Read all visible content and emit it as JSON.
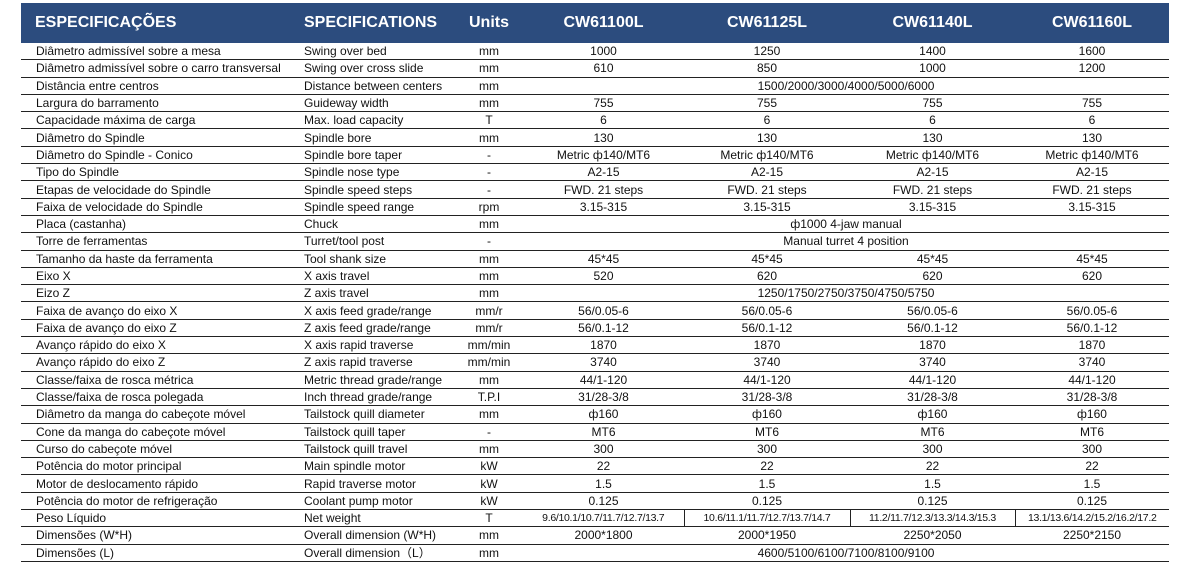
{
  "header": {
    "pt": "ESPECIFICAÇÕES",
    "en": "SPECIFICATIONS",
    "units": "Units",
    "models": [
      "CW61100L",
      "CW61125L",
      "CW61140L",
      "CW61160L"
    ]
  },
  "colors": {
    "header_bg": "#2c4c7e",
    "header_text": "#ffffff",
    "row_border": "#222222"
  },
  "rows": [
    {
      "pt": "Diâmetro admissível sobre a mesa",
      "en": "Swing over bed",
      "unit": "mm",
      "vals": [
        "1000",
        "1250",
        "1400",
        "1600"
      ]
    },
    {
      "pt": "Diâmetro admissível sobre o carro transversal",
      "en": "Swing over cross slide",
      "unit": "mm",
      "vals": [
        "610",
        "850",
        "1000",
        "1200"
      ]
    },
    {
      "pt": "Distância entre centros",
      "en": "Distance between centers",
      "unit": "mm",
      "span": "1500/2000/3000/4000/5000/6000"
    },
    {
      "pt": "Largura do barramento",
      "en": "Guideway width",
      "unit": "mm",
      "vals": [
        "755",
        "755",
        "755",
        "755"
      ]
    },
    {
      "pt": "Capacidade máxima de carga",
      "en": "Max. load capacity",
      "unit": "T",
      "vals": [
        "6",
        "6",
        "6",
        "6"
      ]
    },
    {
      "pt": "Diâmetro do Spindle",
      "en": "Spindle bore",
      "unit": "mm",
      "vals": [
        "130",
        "130",
        "130",
        "130"
      ]
    },
    {
      "pt": "Diâmetro do Spindle - Conico",
      "en": "Spindle bore taper",
      "unit": "-",
      "vals": [
        "Metric ф140/MT6",
        "Metric ф140/MT6",
        "Metric ф140/MT6",
        "Metric ф140/MT6"
      ]
    },
    {
      "pt": "Tipo do Spindle",
      "en": "Spindle nose type",
      "unit": "-",
      "vals": [
        "A2-15",
        "A2-15",
        "A2-15",
        "A2-15"
      ]
    },
    {
      "pt": "Etapas de velocidade do Spindle",
      "en": "Spindle speed steps",
      "unit": "-",
      "vals": [
        "FWD. 21 steps",
        "FWD. 21 steps",
        "FWD. 21 steps",
        "FWD. 21 steps"
      ]
    },
    {
      "pt": "Faixa de velocidade do Spindle",
      "en": "Spindle speed range",
      "unit": "rpm",
      "vals": [
        "3.15-315",
        "3.15-315",
        "3.15-315",
        "3.15-315"
      ]
    },
    {
      "pt": "Placa (castanha)",
      "en": "Chuck",
      "unit": "mm",
      "span": "ф1000 4-jaw manual"
    },
    {
      "pt": "Torre de ferramentas",
      "en": "Turret/tool post",
      "unit": "-",
      "span": "Manual turret 4 position"
    },
    {
      "pt": "Tamanho da haste da ferramenta",
      "en": "Tool shank size",
      "unit": "mm",
      "vals": [
        "45*45",
        "45*45",
        "45*45",
        "45*45"
      ]
    },
    {
      "pt": "Eixo X",
      "en": "X axis travel",
      "unit": "mm",
      "vals": [
        "520",
        "620",
        "620",
        "620"
      ]
    },
    {
      "pt": "Eizo Z",
      "en": "Z axis travel",
      "unit": "mm",
      "span": "1250/1750/2750/3750/4750/5750"
    },
    {
      "pt": "Faixa de avanço do eixo X",
      "en": "X axis feed grade/range",
      "unit": "mm/r",
      "vals": [
        "56/0.05-6",
        "56/0.05-6",
        "56/0.05-6",
        "56/0.05-6"
      ]
    },
    {
      "pt": "Faixa de avanço do eixo Z",
      "en": "Z axis feed grade/range",
      "unit": "mm/r",
      "vals": [
        "56/0.1-12",
        "56/0.1-12",
        "56/0.1-12",
        "56/0.1-12"
      ]
    },
    {
      "pt": "Avanço rápido do eixo X",
      "en": "X axis rapid traverse",
      "unit": "mm/min",
      "vals": [
        "1870",
        "1870",
        "1870",
        "1870"
      ]
    },
    {
      "pt": "Avanço rápido do eixo Z",
      "en": "Z axis rapid traverse",
      "unit": "mm/min",
      "vals": [
        "3740",
        "3740",
        "3740",
        "3740"
      ]
    },
    {
      "pt": "Classe/faixa de rosca métrica",
      "en": "Metric thread grade/range",
      "unit": "mm",
      "vals": [
        "44/1-120",
        "44/1-120",
        "44/1-120",
        "44/1-120"
      ]
    },
    {
      "pt": "Classe/faixa de rosca polegada",
      "en": "Inch thread grade/range",
      "unit": "T.P.I",
      "vals": [
        "31/28-3/8",
        "31/28-3/8",
        "31/28-3/8",
        "31/28-3/8"
      ]
    },
    {
      "pt": "Diâmetro da manga do cabeçote móvel",
      "en": "Tailstock quill diameter",
      "unit": "mm",
      "vals": [
        "ф160",
        "ф160",
        "ф160",
        "ф160"
      ]
    },
    {
      "pt": "Cone da manga do cabeçote móvel",
      "en": "Tailstock quill taper",
      "unit": "-",
      "vals": [
        "MT6",
        "MT6",
        "MT6",
        "MT6"
      ]
    },
    {
      "pt": "Curso do cabeçote móvel",
      "en": "Tailstock quill travel",
      "unit": "mm",
      "vals": [
        "300",
        "300",
        "300",
        "300"
      ]
    },
    {
      "pt": "Potência do motor principal",
      "en": "Main spindle motor",
      "unit": "kW",
      "vals": [
        "22",
        "22",
        "22",
        "22"
      ]
    },
    {
      "pt": "Motor de deslocamento rápido",
      "en": "Rapid traverse motor",
      "unit": "kW",
      "vals": [
        "1.5",
        "1.5",
        "1.5",
        "1.5"
      ]
    },
    {
      "pt": "Potência do motor de refrigeração",
      "en": "Coolant pump motor",
      "unit": "kW",
      "vals": [
        "0.125",
        "0.125",
        "0.125",
        "0.125"
      ]
    },
    {
      "pt": "Peso Líquido",
      "en": "Net weight",
      "unit": "T",
      "small": true,
      "vals": [
        "9.6/10.1/10.7/11.7/12.7/13.7",
        "10.6/11.1/11.7/12.7/13.7/14.7",
        "11.2/11.7/12.3/13.3/14.3/15.3",
        "13.1/13.6/14.2/15.2/16.2/17.2"
      ]
    },
    {
      "pt": "Dimensões (W*H)",
      "en": "Overall dimension (W*H)",
      "unit": "mm",
      "pairs": [
        "2000*1800",
        "2250*2050"
      ],
      "pair_mid": [
        "2000*1950",
        "2250*2150"
      ]
    },
    {
      "pt": "Dimensões (L)",
      "en": "Overall dimension（L）",
      "unit": "mm",
      "span": "4600/5100/6100/7100/8100/9100"
    }
  ]
}
